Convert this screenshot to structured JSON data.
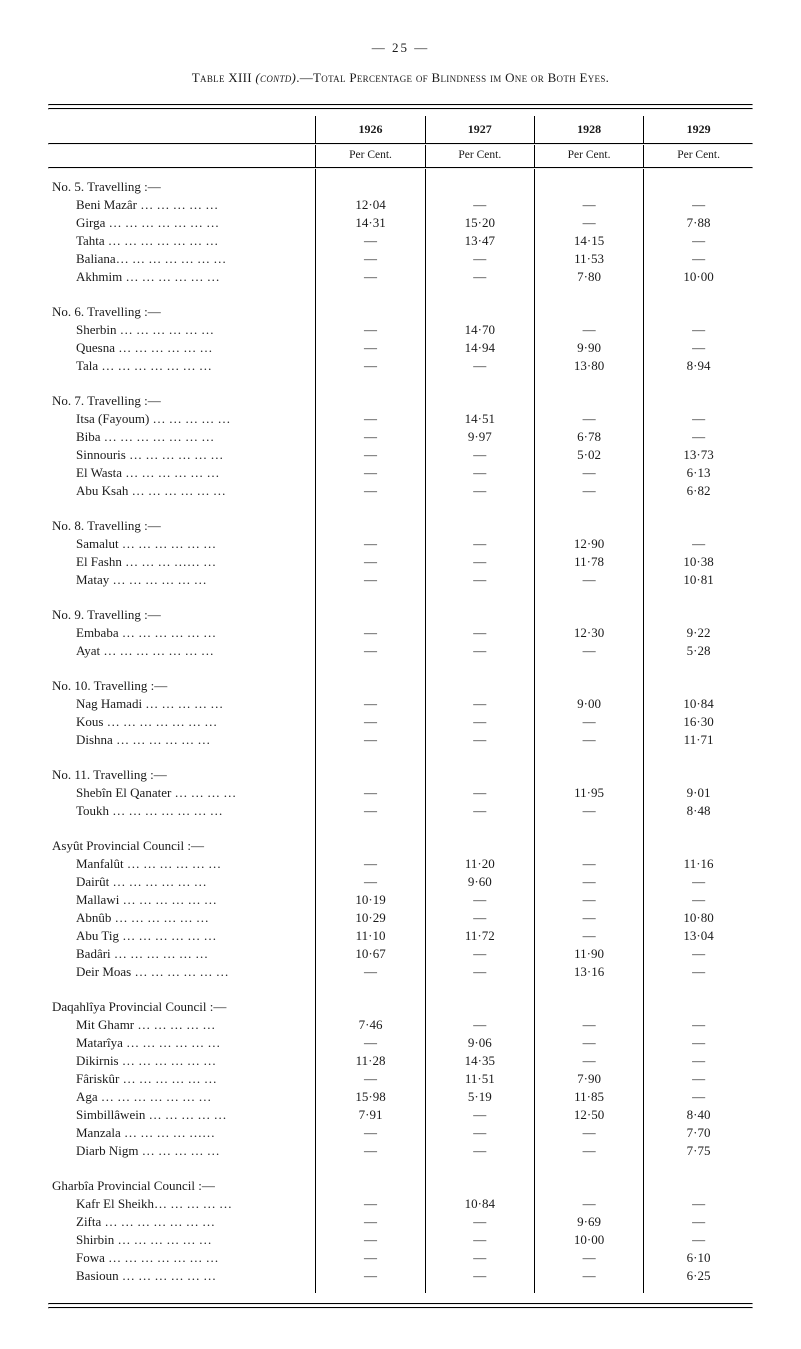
{
  "page_number": "— 25 —",
  "title_prefix": "Table XIII ",
  "title_italic": "(contd)",
  "title_rest": ".—Total Percentage of Blindness im One or Both Eyes.",
  "years": [
    "1926",
    "1927",
    "1928",
    "1929"
  ],
  "percent_label": "Per Cent.",
  "groups": [
    {
      "heading": "No.  5. Travelling :—",
      "rows": [
        {
          "label": "Beni Mazâr   …  …  …  …  …",
          "v": [
            "12·04",
            "—",
            "—",
            "—"
          ]
        },
        {
          "label": "Girga  …   …   …   …   …   …   …",
          "v": [
            "14·31",
            "15·20",
            "—",
            "7·88"
          ]
        },
        {
          "label": "Tahta  …   …   …   …   …   …   …",
          "v": [
            "—",
            "13·47",
            "14·15",
            "—"
          ]
        },
        {
          "label": "Baliana…   …   …   …   …   …   …",
          "v": [
            "—",
            "—",
            "11·53",
            "—"
          ]
        },
        {
          "label": "Akhmim    …   …   …   …   …   …",
          "v": [
            "—",
            "—",
            "7·80",
            "10·00"
          ]
        }
      ]
    },
    {
      "heading": "No.  6. Travelling :—",
      "rows": [
        {
          "label": "Sherbin    …   …   …   …   …   …",
          "v": [
            "—",
            "14·70",
            "—",
            "—"
          ]
        },
        {
          "label": "Quesna    …   …   …   …   …   …",
          "v": [
            "—",
            "14·94",
            "9·90",
            "—"
          ]
        },
        {
          "label": "Tala    …   …   …   …   …   …   …",
          "v": [
            "—",
            "—",
            "13·80",
            "8·94"
          ]
        }
      ]
    },
    {
      "heading": "No.  7. Travelling :—",
      "rows": [
        {
          "label": "Itsa (Fayoum)  …   …   …   …   …",
          "v": [
            "—",
            "14·51",
            "—",
            "—"
          ]
        },
        {
          "label": "Biba  …   …   …   …   …   …   …",
          "v": [
            "—",
            "9·97",
            "6·78",
            "—"
          ]
        },
        {
          "label": "Sinnouris   …   …   …   …   …   …",
          "v": [
            "—",
            "—",
            "5·02",
            "13·73"
          ]
        },
        {
          "label": "El Wasta …   …   …   …   …   …",
          "v": [
            "—",
            "—",
            "—",
            "6·13"
          ]
        },
        {
          "label": "Abu Ksah …   …   …   …   …   …",
          "v": [
            "—",
            "—",
            "—",
            "6·82"
          ]
        }
      ]
    },
    {
      "heading": "No.  8. Travelling :—",
      "rows": [
        {
          "label": "Samalut     …   …   …   …   …   …",
          "v": [
            "—",
            "—",
            "12·90",
            "—"
          ]
        },
        {
          "label": "El Fashn   …   …   …   ……   …",
          "v": [
            "—",
            "—",
            "11·78",
            "10·38"
          ]
        },
        {
          "label": "Matay        …   …   …   …   …   …",
          "v": [
            "—",
            "—",
            "—",
            "10·81"
          ]
        }
      ]
    },
    {
      "heading": "No.  9. Travelling :—",
      "rows": [
        {
          "label": "Embaba    …   …   …   …   …   …",
          "v": [
            "—",
            "—",
            "12·30",
            "9·22"
          ]
        },
        {
          "label": "Ayat  …    …   …   …   …   …   …",
          "v": [
            "—",
            "—",
            "—",
            "5·28"
          ]
        }
      ]
    },
    {
      "heading": "No. 10. Travelling :—",
      "rows": [
        {
          "label": "Nag Hamadi    …   …   …   …   …",
          "v": [
            "—",
            "—",
            "9·00",
            "10·84"
          ]
        },
        {
          "label": "Kous  …    …   …   …   …   …   …",
          "v": [
            "—",
            "—",
            "—",
            "16·30"
          ]
        },
        {
          "label": "Dishna      …   …   …   …   …   …",
          "v": [
            "—",
            "—",
            "—",
            "11·71"
          ]
        }
      ]
    },
    {
      "heading": "No. 11. Travelling :—",
      "rows": [
        {
          "label": "Shebîn El Qanater …   …   …   …",
          "v": [
            "—",
            "—",
            "11·95",
            "9·01"
          ]
        },
        {
          "label": "Toukh …    …   …   …   …   …   …",
          "v": [
            "—",
            "—",
            "—",
            "8·48"
          ]
        }
      ]
    },
    {
      "heading": "Asyût Provincial Council :—",
      "rows": [
        {
          "label": "Manfalût   …   …   …   …   …   …",
          "v": [
            "—",
            "11·20",
            "—",
            "11·16"
          ]
        },
        {
          "label": "Dairût      …   …   …   …   …   …",
          "v": [
            "—",
            "9·60",
            "—",
            "—"
          ]
        },
        {
          "label": "Mallawi     …   …   …   …   …   …",
          "v": [
            "10·19",
            "—",
            "—",
            "—"
          ]
        },
        {
          "label": "Abnûb      …   …   …   …   …   …",
          "v": [
            "10·29",
            "—",
            "—",
            "10·80"
          ]
        },
        {
          "label": "Abu Tig    …   …   …   …   …   …",
          "v": [
            "11·10",
            "11·72",
            "—",
            "13·04"
          ]
        },
        {
          "label": "Badâri      …   …   …   …   …   …",
          "v": [
            "10·67",
            "—",
            "11·90",
            "—"
          ]
        },
        {
          "label": "Deir Moas …   …   …   …   …   …",
          "v": [
            "—",
            "—",
            "13·16",
            "—"
          ]
        }
      ]
    },
    {
      "heading": "Daqahlîya Provincial Council :—",
      "rows": [
        {
          "label": "Mit Ghamr       …   …   …   …   …",
          "v": [
            "7·46",
            "—",
            "—",
            "—"
          ]
        },
        {
          "label": "Matarîya   …   …   …   …   …   …",
          "v": [
            "—",
            "9·06",
            "—",
            "—"
          ]
        },
        {
          "label": "Dikirnis    …   …   …   …   …   …",
          "v": [
            "11·28",
            "14·35",
            "—",
            "—"
          ]
        },
        {
          "label": "Fâriskûr   …   …   …   …   …   …",
          "v": [
            "—",
            "11·51",
            "7·90",
            "—"
          ]
        },
        {
          "label": "Aga   …    …   …   …   …   …   …",
          "v": [
            "15·98",
            "5·19",
            "11·85",
            "—"
          ]
        },
        {
          "label": "Simbillâwein     …   …   …   …   …",
          "v": [
            "7·91",
            "—",
            "12·50",
            "8·40"
          ]
        },
        {
          "label": "Manzala    …   …   …   …   ……",
          "v": [
            "—",
            "—",
            "—",
            "7·70"
          ]
        },
        {
          "label": "Diarb Nigm      …   …   …   …   …",
          "v": [
            "—",
            "—",
            "—",
            "7·75"
          ]
        }
      ]
    },
    {
      "heading": "Gharbîa Provincial Council :—",
      "rows": [
        {
          "label": "Kafr El Sheikh…   …   …   …   …",
          "v": [
            "—",
            "10·84",
            "—",
            "—"
          ]
        },
        {
          "label": "Zifta  …    …   …   …   …   …   …",
          "v": [
            "—",
            "—",
            "9·69",
            "—"
          ]
        },
        {
          "label": "Shirbin     …   …   …   …   …   …",
          "v": [
            "—",
            "—",
            "10·00",
            "—"
          ]
        },
        {
          "label": "Fowa  …    …   …   …   …   …   …",
          "v": [
            "—",
            "—",
            "—",
            "6·10"
          ]
        },
        {
          "label": "Basioun     …   …   …   …   …   …",
          "v": [
            "—",
            "—",
            "—",
            "6·25"
          ]
        }
      ]
    }
  ]
}
